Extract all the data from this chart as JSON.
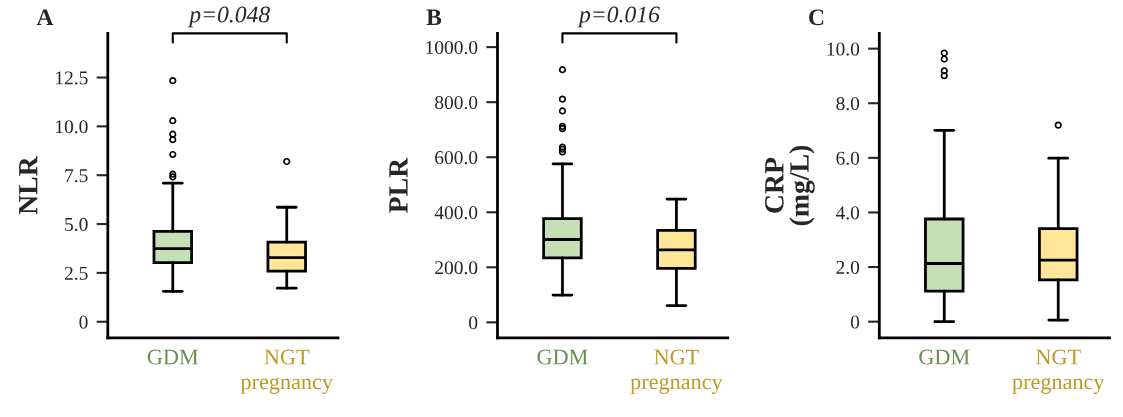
{
  "chart_data": [
    {
      "type": "box",
      "title": "A",
      "ylabel": "NLR",
      "categories": [
        "GDM",
        "NGT\npregnancy"
      ],
      "colors": [
        "#c5e0b4",
        "#ffe699"
      ],
      "boxes": [
        {
          "low": 1.56,
          "q1": 3.03,
          "median": 3.74,
          "q3": 4.63,
          "high": 7.09,
          "outliers": [
            7.41,
            7.55,
            8.56,
            9.32,
            9.6,
            10.29,
            12.34
          ]
        },
        {
          "low": 1.72,
          "q1": 2.59,
          "median": 3.28,
          "q3": 4.07,
          "high": 5.86,
          "outliers": [
            8.2
          ]
        }
      ],
      "ylim": [
        -0.82,
        14.76
      ],
      "yticks": [
        0,
        2.5,
        {
          "value": 5,
          "label": "5.0"
        },
        7.5,
        {
          "value": 10,
          "label": "10.0"
        },
        12.5
      ],
      "annotations": [
        "p=0.048"
      ]
    },
    {
      "type": "box",
      "title": "B",
      "ylabel": "PLR",
      "categories": [
        "GDM",
        "NGT\npregnancy"
      ],
      "colors": [
        "#c5e0b4",
        "#ffe699"
      ],
      "boxes": [
        {
          "low": 99,
          "q1": 234,
          "median": 301,
          "q3": 377,
          "high": 576,
          "outliers": [
            619,
            629,
            637,
            704,
            712,
            768,
            811,
            918
          ]
        },
        {
          "low": 61,
          "q1": 196,
          "median": 263,
          "q3": 334,
          "high": 448
        }
      ],
      "ylim": [
        -56,
        1050
      ],
      "yticks": [
        0,
        {
          "value": 200,
          "label": "200.0"
        },
        {
          "value": 400,
          "label": "400.0"
        },
        {
          "value": 600,
          "label": "600.0"
        },
        {
          "value": 800,
          "label": "800.0"
        },
        {
          "value": 1000,
          "label": "1000.0"
        }
      ],
      "annotations": [
        "p=0.016"
      ]
    },
    {
      "type": "box",
      "title": "C",
      "ylabel": "CRP\n(mg/L)",
      "categories": [
        "GDM",
        "NGT\npregnancy"
      ],
      "colors": [
        "#c5e0b4",
        "#ffe699"
      ],
      "boxes": [
        {
          "low": 0,
          "q1": 1.12,
          "median": 2.13,
          "q3": 3.76,
          "high": 7.01,
          "outliers": [
            9.01,
            9.19,
            9.62,
            9.84
          ]
        },
        {
          "low": 0.06,
          "q1": 1.53,
          "median": 2.25,
          "q3": 3.41,
          "high": 5.99,
          "outliers": [
            7.2
          ]
        }
      ],
      "ylim": [
        -0.59,
        10.56
      ],
      "yticks": [
        0,
        {
          "value": 2,
          "label": "2.0"
        },
        {
          "value": 4,
          "label": "4.0"
        },
        {
          "value": 6,
          "label": "6.0"
        },
        {
          "value": 8,
          "label": "8.0"
        },
        {
          "value": 10,
          "label": "10.0"
        }
      ]
    }
  ]
}
